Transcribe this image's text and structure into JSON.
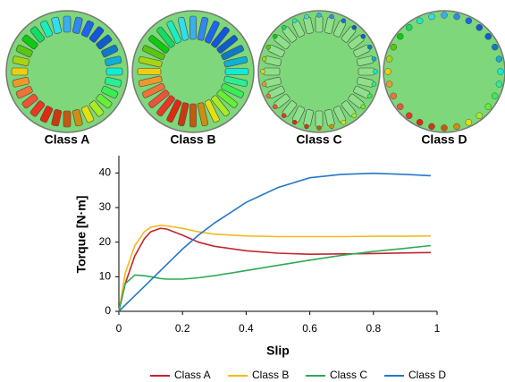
{
  "rotors": [
    {
      "label": "Class A"
    },
    {
      "label": "Class B"
    },
    {
      "label": "Class C"
    },
    {
      "label": "Class D"
    }
  ],
  "chart_data": {
    "type": "line",
    "x_label": "Slip",
    "y_label": "Torque [N·m]",
    "x": [
      0,
      0.02,
      0.05,
      0.08,
      0.1,
      0.13,
      0.15,
      0.2,
      0.25,
      0.3,
      0.4,
      0.5,
      0.6,
      0.7,
      0.8,
      0.9,
      0.98
    ],
    "series": [
      {
        "name": "Class A",
        "color": "#c0262d",
        "values": [
          0,
          8,
          16,
          21,
          23,
          24,
          23.8,
          22,
          20,
          18.8,
          17.5,
          16.8,
          16.5,
          16.6,
          16.7,
          16.9,
          17
        ]
      },
      {
        "name": "Class B",
        "color": "#f5b820",
        "values": [
          0,
          11,
          19,
          23,
          24.3,
          24.8,
          24.7,
          24,
          23,
          22.3,
          21.8,
          21.6,
          21.6,
          21.6,
          21.7,
          21.7,
          21.8
        ]
      },
      {
        "name": "Class C",
        "color": "#2eaa55",
        "values": [
          0,
          8,
          10.5,
          10.3,
          10,
          9.5,
          9.3,
          9.3,
          9.7,
          10.3,
          11.8,
          13.3,
          14.8,
          16.2,
          17.3,
          18.2,
          19
        ]
      },
      {
        "name": "Class D",
        "color": "#2478c8",
        "values": [
          0,
          1.8,
          4.5,
          7.2,
          9,
          11.7,
          13.5,
          18,
          22,
          25.5,
          31.5,
          35.8,
          38.6,
          39.6,
          39.9,
          39.6,
          39.2
        ]
      }
    ],
    "xlim": [
      0,
      1
    ],
    "xticks": [
      0,
      0.2,
      0.4,
      0.6,
      0.8,
      1
    ],
    "ylim": [
      0,
      45
    ],
    "yticks": [
      0,
      10,
      20,
      30,
      40
    ],
    "grid": false,
    "legend": "bottom"
  }
}
